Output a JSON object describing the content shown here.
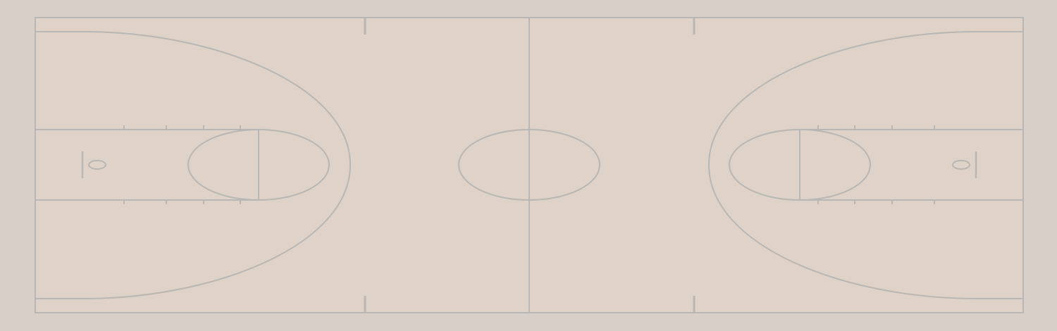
{
  "court": {
    "surface_color": "#dfd3c9",
    "outer_color": "#d8cfc9",
    "line_color": "#b9b6b3",
    "features": [
      "boundary",
      "half-court-line",
      "center-circle",
      "left-three-point-arc",
      "right-three-point-arc",
      "left-lane",
      "right-lane",
      "left-free-throw-circle",
      "right-free-throw-circle",
      "left-basket",
      "right-basket",
      "sideline-hash-marks",
      "lane-hash-marks"
    ]
  }
}
